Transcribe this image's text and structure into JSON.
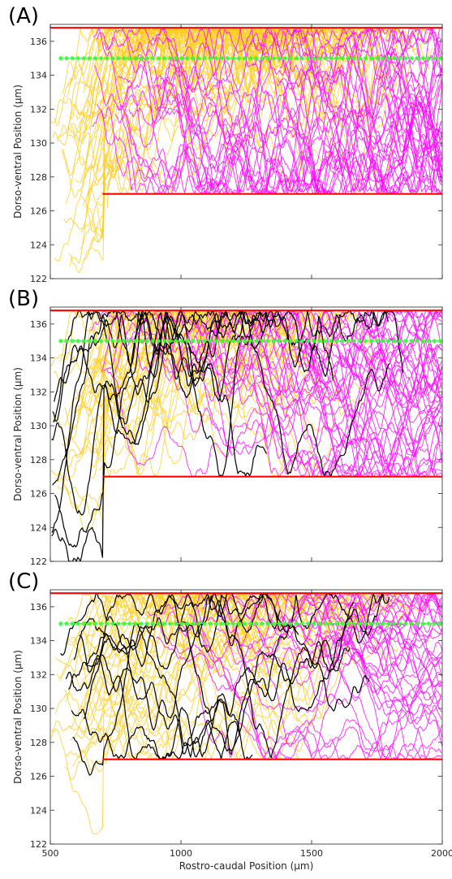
{
  "figure": {
    "colors": {
      "wall": "#ff0000",
      "traj_a": "#ff00ff",
      "traj_b": "#ffcc22",
      "traj_c": "#000000",
      "marker": "#33ff33"
    }
  },
  "chart_data": [
    {
      "type": "line",
      "panel_label": "(A)",
      "ylabel": "Dorso-ventral Position (μm)",
      "xlabel": "",
      "xlim": [
        500,
        2000
      ],
      "ylim": [
        122,
        137
      ],
      "yticks": [
        122,
        124,
        126,
        128,
        130,
        132,
        134,
        136
      ],
      "xticks": [
        500,
        1000,
        1500,
        2000
      ],
      "show_xtick_labels": false,
      "boundaries": [
        {
          "x": [
            500,
            2000
          ],
          "y": [
            136.8,
            136.8
          ]
        },
        {
          "x": [
            700,
            2000
          ],
          "y": [
            127,
            127
          ]
        }
      ],
      "marker_line": {
        "x": [
          540,
          2000
        ],
        "y": [
          135,
          135
        ]
      },
      "groups": [
        {
          "color_key": "traj_b",
          "count": 45,
          "x_start": [
            500,
            720
          ],
          "y_start": [
            122.5,
            133.5
          ],
          "x_end": [
            1300,
            2000
          ],
          "drift": 0.7,
          "noise": 0.55,
          "top": 136.8,
          "bottom": 127.0,
          "seed": 11
        },
        {
          "color_key": "traj_a",
          "count": 40,
          "x_start": [
            620,
            1800
          ],
          "y_start": [
            131,
            136.5
          ],
          "x_end": [
            2000,
            2000
          ],
          "drift": -0.15,
          "noise": 0.6,
          "top": 136.8,
          "bottom": 127.0,
          "seed": 23
        }
      ]
    },
    {
      "type": "line",
      "panel_label": "(B)",
      "ylabel": "Dorso-ventral Position (μm)",
      "xlabel": "",
      "xlim": [
        500,
        2000
      ],
      "ylim": [
        122,
        137
      ],
      "yticks": [
        122,
        124,
        126,
        128,
        130,
        132,
        134,
        136
      ],
      "xticks": [
        500,
        1000,
        1500,
        2000
      ],
      "show_xtick_labels": false,
      "boundaries": [
        {
          "x": [
            500,
            2000
          ],
          "y": [
            136.8,
            136.8
          ]
        },
        {
          "x": [
            700,
            2000
          ],
          "y": [
            127,
            127
          ]
        }
      ],
      "marker_line": {
        "x": [
          540,
          2000
        ],
        "y": [
          135,
          135
        ]
      },
      "groups": [
        {
          "color_key": "traj_b",
          "count": 38,
          "x_start": [
            500,
            720
          ],
          "y_start": [
            126,
            134
          ],
          "x_end": [
            1100,
            1750
          ],
          "drift": 0.5,
          "noise": 0.5,
          "top": 136.8,
          "bottom": 127.0,
          "seed": 37
        },
        {
          "color_key": "traj_a",
          "count": 40,
          "x_start": [
            650,
            1700
          ],
          "y_start": [
            132.5,
            136.5
          ],
          "x_end": [
            2000,
            2000
          ],
          "drift": -0.05,
          "noise": 0.45,
          "top": 136.8,
          "bottom": 127.0,
          "seed": 41
        },
        {
          "color_key": "traj_c",
          "count": 8,
          "x_start": [
            500,
            520
          ],
          "y_start": [
            122.5,
            134
          ],
          "x_end": [
            1100,
            1880
          ],
          "drift": 0.6,
          "noise": 0.65,
          "top": 136.8,
          "bottom": 127.0,
          "seed": 53
        }
      ]
    },
    {
      "type": "line",
      "panel_label": "(C)",
      "ylabel": "Dorso-ventral Position (μm)",
      "xlabel": "Rostro-caudal Position (μm)",
      "xlim": [
        500,
        2000
      ],
      "ylim": [
        122,
        137
      ],
      "yticks": [
        122,
        124,
        126,
        128,
        130,
        132,
        134,
        136
      ],
      "xticks": [
        500,
        1000,
        1500,
        2000
      ],
      "show_xtick_labels": true,
      "boundaries": [
        {
          "x": [
            500,
            2000
          ],
          "y": [
            136.8,
            136.8
          ]
        },
        {
          "x": [
            700,
            2000
          ],
          "y": [
            127,
            127
          ]
        }
      ],
      "marker_line": {
        "x": [
          540,
          2000
        ],
        "y": [
          135,
          135
        ]
      },
      "groups": [
        {
          "color_key": "traj_b",
          "count": 40,
          "x_start": [
            500,
            720
          ],
          "y_start": [
            126.3,
            135.5
          ],
          "x_end": [
            1300,
            1960
          ],
          "drift": 0.25,
          "noise": 0.4,
          "top": 136.8,
          "bottom": 127.0,
          "seed": 61
        },
        {
          "color_key": "traj_a",
          "count": 35,
          "x_start": [
            850,
            1750
          ],
          "y_start": [
            133.5,
            136.5
          ],
          "x_end": [
            2000,
            2000
          ],
          "drift": 0.0,
          "noise": 0.35,
          "top": 136.8,
          "bottom": 127.0,
          "seed": 67
        },
        {
          "color_key": "traj_c",
          "count": 9,
          "x_start": [
            500,
            650
          ],
          "y_start": [
            127.5,
            135.5
          ],
          "x_end": [
            1150,
            1850
          ],
          "drift": 0.05,
          "noise": 0.5,
          "top": 136.8,
          "bottom": 127.0,
          "seed": 71
        }
      ]
    }
  ]
}
